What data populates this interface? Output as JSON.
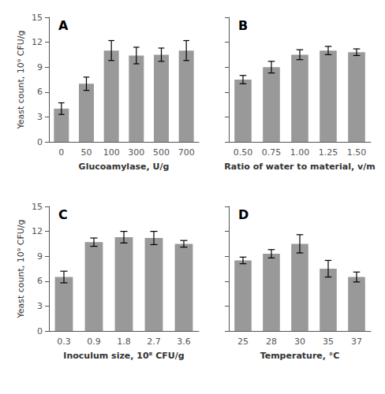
{
  "chart_data": [
    {
      "type": "bar",
      "annotation": "A",
      "xlabel": "Glucoamylase, U/g",
      "ylabel": "Yeast count, 10⁹ CFU/g",
      "categories": [
        "0",
        "50",
        "100",
        "300",
        "500",
        "700"
      ],
      "values": [
        4.0,
        7.0,
        11.0,
        10.4,
        10.5,
        11.0
      ],
      "errors": [
        0.7,
        0.8,
        1.2,
        1.0,
        0.8,
        1.2
      ],
      "color": "#999999",
      "ylim": [
        0,
        15
      ],
      "yticks": [
        0,
        3,
        6,
        9,
        12,
        15
      ],
      "grid": false
    },
    {
      "type": "bar",
      "annotation": "B",
      "xlabel": "Ratio of water to material, v/m",
      "categories": [
        "0.50",
        "0.75",
        "1.00",
        "1.25",
        "1.50"
      ],
      "values": [
        7.5,
        9.0,
        10.5,
        11.0,
        10.8
      ],
      "errors": [
        0.5,
        0.7,
        0.6,
        0.5,
        0.4
      ],
      "color": "#999999",
      "ylim": [
        0,
        15
      ],
      "yticks": [
        0,
        3,
        6,
        9,
        12,
        15
      ],
      "grid": false,
      "tick_labels": "x"
    },
    {
      "type": "bar",
      "annotation": "C",
      "xlabel": "Inoculum size, 10⁸ CFU/g",
      "ylabel": "Yeast count, 10⁹ CFU/g",
      "categories": [
        "0.3",
        "0.9",
        "1.8",
        "2.7",
        "3.6"
      ],
      "values": [
        6.5,
        10.7,
        11.3,
        11.2,
        10.5
      ],
      "errors": [
        0.7,
        0.5,
        0.7,
        0.8,
        0.4
      ],
      "color": "#999999",
      "ylim": [
        0,
        15
      ],
      "yticks": [
        0,
        3,
        6,
        9,
        12,
        15
      ],
      "grid": false
    },
    {
      "type": "bar",
      "annotation": "D",
      "xlabel": "Temperature, °C",
      "categories": [
        "25",
        "28",
        "30",
        "35",
        "37"
      ],
      "values": [
        8.5,
        9.3,
        10.5,
        7.5,
        6.5
      ],
      "errors": [
        0.4,
        0.5,
        1.1,
        1.0,
        0.6
      ],
      "color": "#999999",
      "ylim": [
        0,
        15
      ],
      "yticks": [
        0,
        3,
        6,
        9,
        12,
        15
      ],
      "grid": false,
      "tick_labels": "x"
    }
  ]
}
